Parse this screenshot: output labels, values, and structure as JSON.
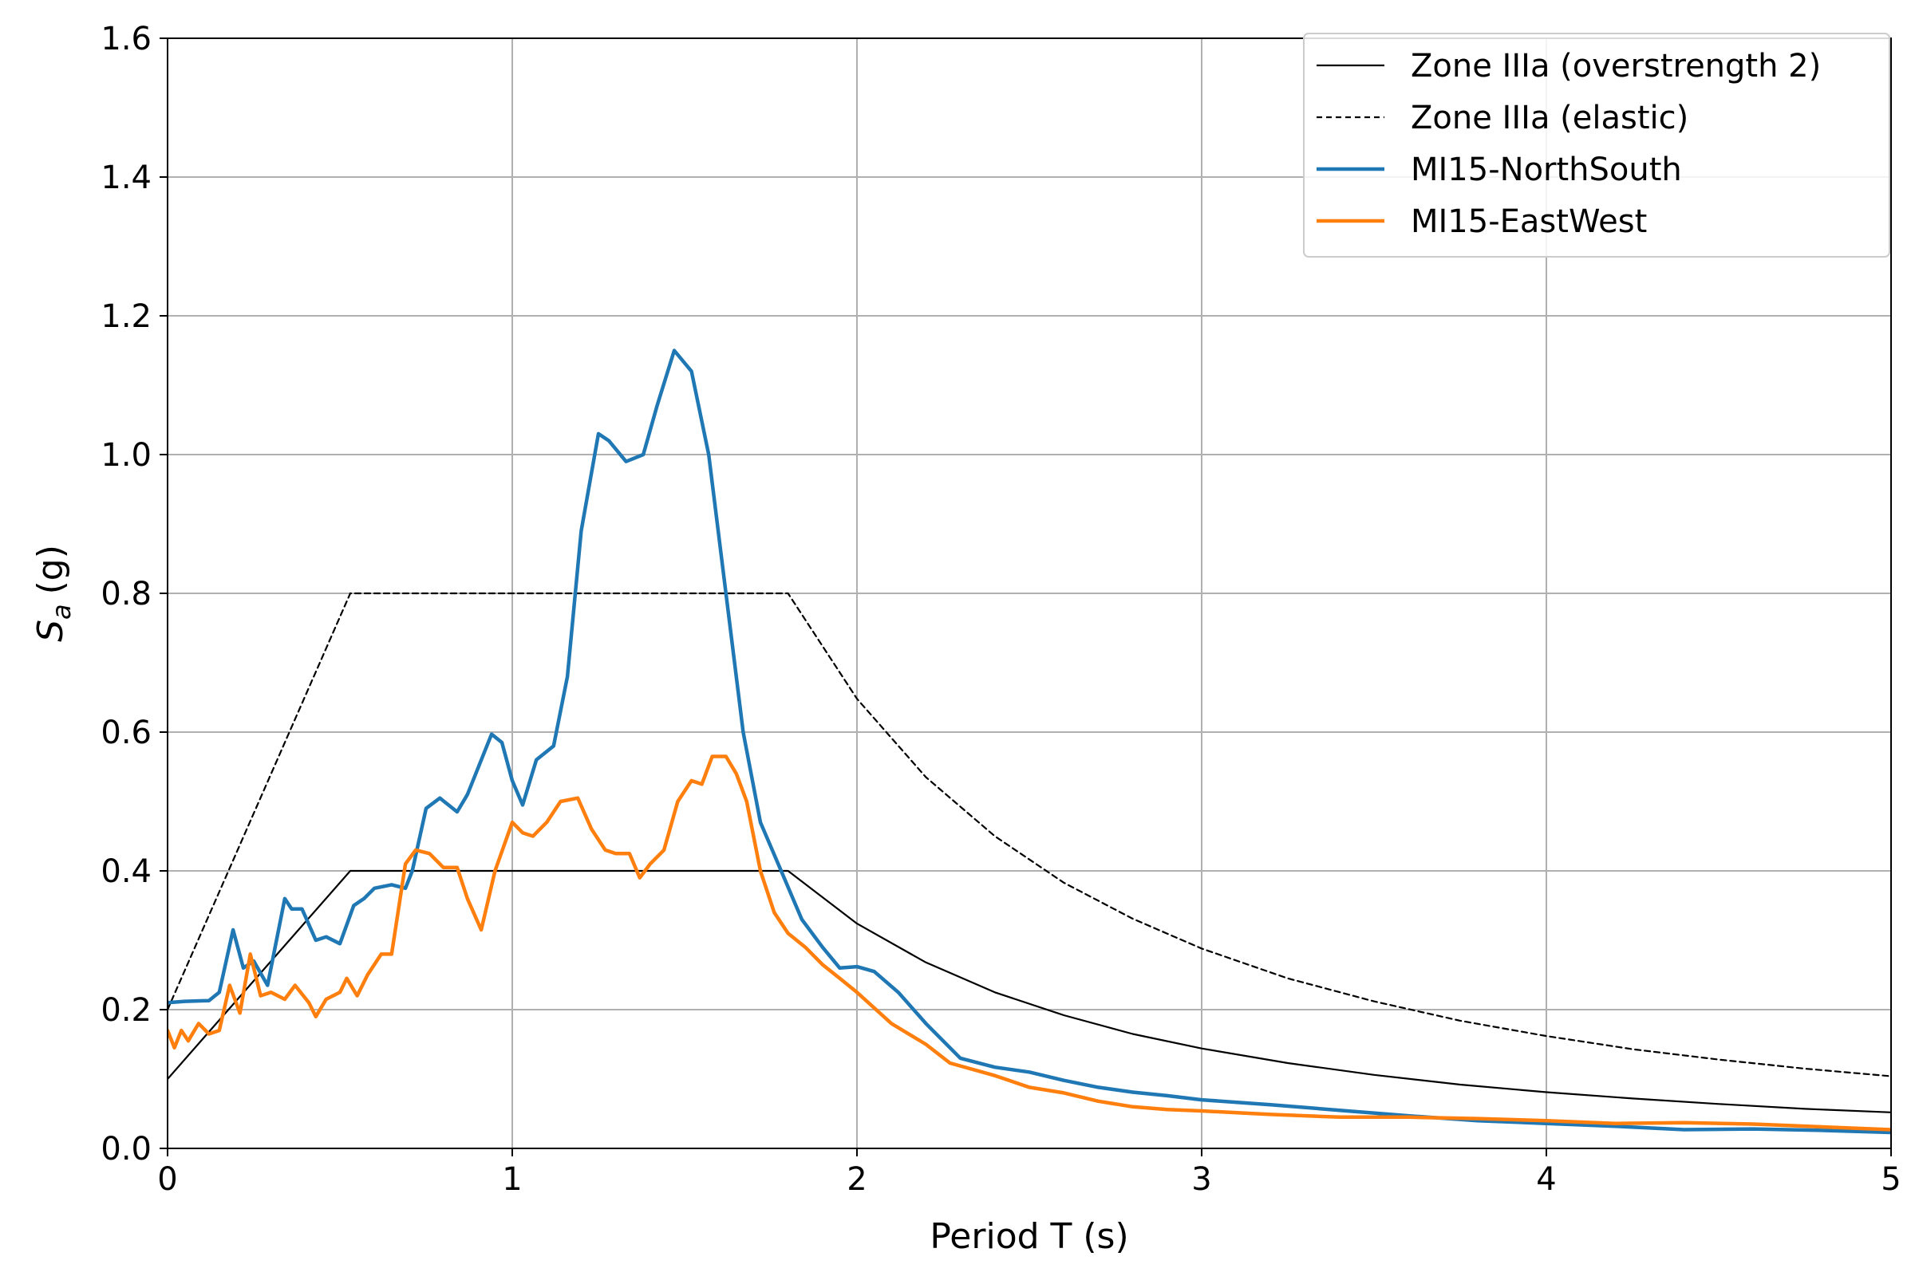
{
  "chart_data": {
    "type": "line",
    "xlabel": "Period T (s)",
    "ylabel_main": "S",
    "ylabel_sub": "a",
    "ylabel_unit": "(g)",
    "xlim": [
      0,
      5
    ],
    "ylim": [
      0,
      1.6
    ],
    "xticks": [
      0,
      1,
      2,
      3,
      4,
      5
    ],
    "xtick_labels": [
      "0",
      "1",
      "2",
      "3",
      "4",
      "5"
    ],
    "yticks": [
      0,
      0.2,
      0.4,
      0.6,
      0.8,
      1.0,
      1.2,
      1.4,
      1.6
    ],
    "ytick_labels": [
      "0.0",
      "0.2",
      "0.4",
      "0.6",
      "0.8",
      "1.0",
      "1.2",
      "1.4",
      "1.6"
    ],
    "grid": true,
    "legend_position": "top-right",
    "series": [
      {
        "name": "Zone IIIa (overstrength 2)",
        "color": "#000000",
        "style": "solid",
        "points": [
          [
            0,
            0.1
          ],
          [
            0.53,
            0.4
          ],
          [
            1.8,
            0.4
          ],
          [
            2.0,
            0.324
          ],
          [
            2.2,
            0.268
          ],
          [
            2.4,
            0.225
          ],
          [
            2.6,
            0.192
          ],
          [
            2.8,
            0.165
          ],
          [
            3.0,
            0.144
          ],
          [
            3.25,
            0.123
          ],
          [
            3.5,
            0.106
          ],
          [
            3.75,
            0.092
          ],
          [
            4.0,
            0.081
          ],
          [
            4.25,
            0.072
          ],
          [
            4.5,
            0.064
          ],
          [
            4.75,
            0.057
          ],
          [
            5.0,
            0.052
          ]
        ]
      },
      {
        "name": "Zone IIIa (elastic)",
        "color": "#000000",
        "style": "dashed",
        "points": [
          [
            0,
            0.2
          ],
          [
            0.53,
            0.8
          ],
          [
            1.8,
            0.8
          ],
          [
            2.0,
            0.648
          ],
          [
            2.2,
            0.535
          ],
          [
            2.4,
            0.45
          ],
          [
            2.6,
            0.383
          ],
          [
            2.8,
            0.331
          ],
          [
            3.0,
            0.288
          ],
          [
            3.25,
            0.245
          ],
          [
            3.5,
            0.212
          ],
          [
            3.75,
            0.184
          ],
          [
            4.0,
            0.162
          ],
          [
            4.25,
            0.143
          ],
          [
            4.5,
            0.128
          ],
          [
            4.75,
            0.115
          ],
          [
            5.0,
            0.104
          ]
        ]
      },
      {
        "name": "MI15-NorthSouth",
        "color": "#1f77b4",
        "style": "solid",
        "points": [
          [
            0,
            0.21
          ],
          [
            0.05,
            0.212
          ],
          [
            0.12,
            0.213
          ],
          [
            0.15,
            0.225
          ],
          [
            0.19,
            0.315
          ],
          [
            0.22,
            0.26
          ],
          [
            0.25,
            0.27
          ],
          [
            0.29,
            0.235
          ],
          [
            0.34,
            0.36
          ],
          [
            0.36,
            0.345
          ],
          [
            0.39,
            0.345
          ],
          [
            0.43,
            0.3
          ],
          [
            0.46,
            0.305
          ],
          [
            0.5,
            0.295
          ],
          [
            0.54,
            0.35
          ],
          [
            0.57,
            0.36
          ],
          [
            0.6,
            0.375
          ],
          [
            0.65,
            0.38
          ],
          [
            0.69,
            0.375
          ],
          [
            0.71,
            0.4
          ],
          [
            0.75,
            0.49
          ],
          [
            0.79,
            0.505
          ],
          [
            0.84,
            0.485
          ],
          [
            0.87,
            0.51
          ],
          [
            0.94,
            0.597
          ],
          [
            0.97,
            0.585
          ],
          [
            1.0,
            0.53
          ],
          [
            1.03,
            0.495
          ],
          [
            1.07,
            0.56
          ],
          [
            1.12,
            0.58
          ],
          [
            1.16,
            0.68
          ],
          [
            1.2,
            0.89
          ],
          [
            1.25,
            1.03
          ],
          [
            1.28,
            1.02
          ],
          [
            1.33,
            0.99
          ],
          [
            1.38,
            1.0
          ],
          [
            1.42,
            1.07
          ],
          [
            1.47,
            1.15
          ],
          [
            1.52,
            1.12
          ],
          [
            1.57,
            1.0
          ],
          [
            1.62,
            0.8
          ],
          [
            1.67,
            0.6
          ],
          [
            1.72,
            0.47
          ],
          [
            1.78,
            0.4
          ],
          [
            1.84,
            0.33
          ],
          [
            1.9,
            0.29
          ],
          [
            1.95,
            0.26
          ],
          [
            2.0,
            0.262
          ],
          [
            2.05,
            0.255
          ],
          [
            2.12,
            0.225
          ],
          [
            2.2,
            0.18
          ],
          [
            2.3,
            0.13
          ],
          [
            2.4,
            0.117
          ],
          [
            2.5,
            0.11
          ],
          [
            2.6,
            0.098
          ],
          [
            2.7,
            0.088
          ],
          [
            2.8,
            0.081
          ],
          [
            2.9,
            0.076
          ],
          [
            3.0,
            0.07
          ],
          [
            3.2,
            0.063
          ],
          [
            3.4,
            0.055
          ],
          [
            3.6,
            0.047
          ],
          [
            3.8,
            0.04
          ],
          [
            4.0,
            0.036
          ],
          [
            4.2,
            0.032
          ],
          [
            4.4,
            0.027
          ],
          [
            4.6,
            0.028
          ],
          [
            4.8,
            0.026
          ],
          [
            5.0,
            0.023
          ]
        ]
      },
      {
        "name": "MI15-EastWest",
        "color": "#ff7f0e",
        "style": "solid",
        "points": [
          [
            0,
            0.17
          ],
          [
            0.02,
            0.145
          ],
          [
            0.04,
            0.17
          ],
          [
            0.06,
            0.155
          ],
          [
            0.09,
            0.18
          ],
          [
            0.12,
            0.165
          ],
          [
            0.15,
            0.17
          ],
          [
            0.18,
            0.235
          ],
          [
            0.21,
            0.195
          ],
          [
            0.24,
            0.28
          ],
          [
            0.27,
            0.22
          ],
          [
            0.3,
            0.225
          ],
          [
            0.34,
            0.215
          ],
          [
            0.37,
            0.235
          ],
          [
            0.41,
            0.21
          ],
          [
            0.43,
            0.19
          ],
          [
            0.46,
            0.215
          ],
          [
            0.5,
            0.225
          ],
          [
            0.52,
            0.245
          ],
          [
            0.55,
            0.22
          ],
          [
            0.58,
            0.25
          ],
          [
            0.62,
            0.28
          ],
          [
            0.65,
            0.28
          ],
          [
            0.69,
            0.41
          ],
          [
            0.72,
            0.43
          ],
          [
            0.76,
            0.425
          ],
          [
            0.8,
            0.405
          ],
          [
            0.84,
            0.405
          ],
          [
            0.87,
            0.36
          ],
          [
            0.91,
            0.315
          ],
          [
            0.95,
            0.4
          ],
          [
            1.0,
            0.47
          ],
          [
            1.03,
            0.455
          ],
          [
            1.06,
            0.45
          ],
          [
            1.1,
            0.47
          ],
          [
            1.14,
            0.5
          ],
          [
            1.19,
            0.505
          ],
          [
            1.23,
            0.46
          ],
          [
            1.27,
            0.43
          ],
          [
            1.3,
            0.425
          ],
          [
            1.34,
            0.425
          ],
          [
            1.37,
            0.39
          ],
          [
            1.4,
            0.41
          ],
          [
            1.44,
            0.43
          ],
          [
            1.48,
            0.5
          ],
          [
            1.52,
            0.53
          ],
          [
            1.55,
            0.525
          ],
          [
            1.58,
            0.565
          ],
          [
            1.62,
            0.565
          ],
          [
            1.65,
            0.54
          ],
          [
            1.68,
            0.5
          ],
          [
            1.72,
            0.4
          ],
          [
            1.76,
            0.34
          ],
          [
            1.8,
            0.31
          ],
          [
            1.85,
            0.29
          ],
          [
            1.9,
            0.265
          ],
          [
            1.95,
            0.245
          ],
          [
            2.0,
            0.225
          ],
          [
            2.1,
            0.18
          ],
          [
            2.2,
            0.15
          ],
          [
            2.27,
            0.123
          ],
          [
            2.4,
            0.105
          ],
          [
            2.5,
            0.088
          ],
          [
            2.6,
            0.08
          ],
          [
            2.7,
            0.068
          ],
          [
            2.8,
            0.06
          ],
          [
            2.9,
            0.056
          ],
          [
            3.0,
            0.054
          ],
          [
            3.2,
            0.049
          ],
          [
            3.4,
            0.045
          ],
          [
            3.6,
            0.045
          ],
          [
            3.8,
            0.043
          ],
          [
            4.0,
            0.04
          ],
          [
            4.2,
            0.036
          ],
          [
            4.4,
            0.037
          ],
          [
            4.6,
            0.035
          ],
          [
            4.8,
            0.031
          ],
          [
            5.0,
            0.027
          ]
        ]
      }
    ]
  }
}
